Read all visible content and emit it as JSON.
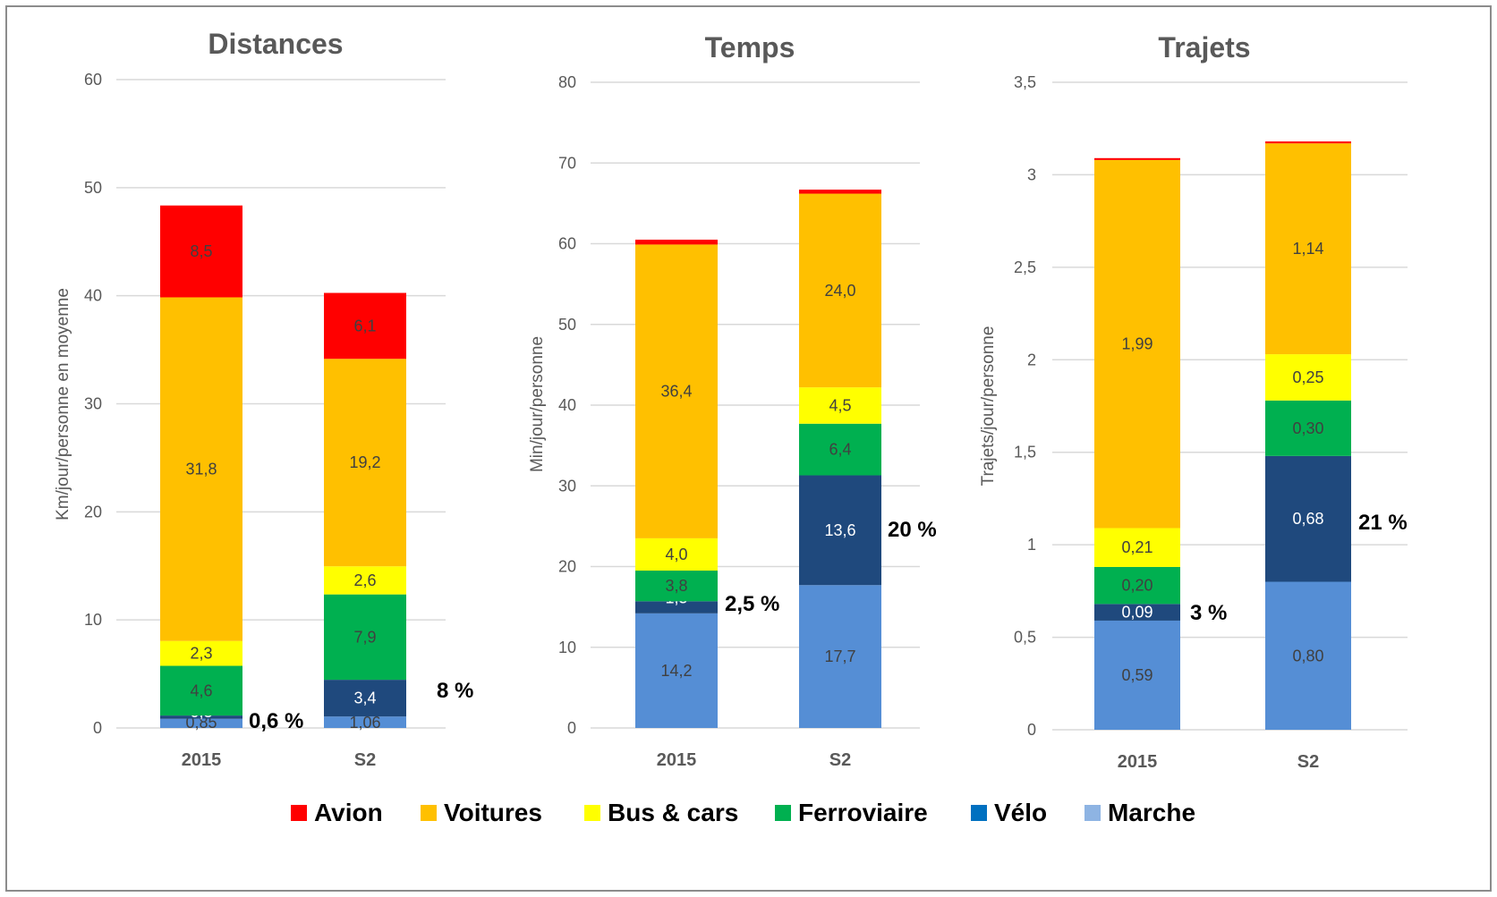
{
  "legend": [
    {
      "name": "Avion",
      "color": "#ff0000"
    },
    {
      "name": "Voitures",
      "color": "#ffc000"
    },
    {
      "name": "Bus & cars",
      "color": "#ffff00"
    },
    {
      "name": "Ferroviaire",
      "color": "#00b050"
    },
    {
      "name": "Vélo",
      "color": "#0070c0"
    },
    {
      "name": "Marche",
      "color": "#8eb4e3"
    }
  ],
  "chart_data": [
    {
      "type": "bar",
      "stacked": true,
      "title": "Distances",
      "ylabel": "Km/jour/personne en moyenne",
      "categories": [
        "2015",
        "S2"
      ],
      "ylim": [
        0,
        60
      ],
      "yticks": [
        "0",
        "10",
        "20",
        "30",
        "40",
        "50",
        "60"
      ],
      "ytick_values": [
        0,
        10,
        20,
        30,
        40,
        50,
        60
      ],
      "grid": true,
      "series": [
        {
          "name": "Marche",
          "color": "#558ed5",
          "values": [
            0.85,
            1.06
          ],
          "labels": [
            "0,85",
            "1,06"
          ],
          "label_color": "#404040"
        },
        {
          "name": "Vélo",
          "color": "#1f497d",
          "values": [
            0.3,
            3.4
          ],
          "labels": [
            "0,3",
            "3,4"
          ],
          "label_color": "#ffffff"
        },
        {
          "name": "Ferroviaire",
          "color": "#00b050",
          "values": [
            4.6,
            7.9
          ],
          "labels": [
            "4,6",
            "7,9"
          ],
          "label_color": "#404040"
        },
        {
          "name": "Bus & cars",
          "color": "#ffff00",
          "values": [
            2.3,
            2.6
          ],
          "labels": [
            "2,3",
            "2,6"
          ],
          "label_color": "#404040"
        },
        {
          "name": "Voitures",
          "color": "#ffc000",
          "values": [
            31.8,
            19.2
          ],
          "labels": [
            "31,8",
            "19,2"
          ],
          "label_color": "#404040"
        },
        {
          "name": "Avion",
          "color": "#ff0000",
          "values": [
            8.5,
            6.1
          ],
          "labels": [
            "8,5",
            "6,1"
          ],
          "label_color": "#404040"
        }
      ],
      "annotations": [
        "0,6 %",
        "8 %"
      ]
    },
    {
      "type": "bar",
      "stacked": true,
      "title": "Temps",
      "ylabel": "Min/jour/personne",
      "categories": [
        "2015",
        "S2"
      ],
      "ylim": [
        0,
        80
      ],
      "yticks": [
        "0",
        "10",
        "20",
        "30",
        "40",
        "50",
        "60",
        "70",
        "80"
      ],
      "ytick_values": [
        0,
        10,
        20,
        30,
        40,
        50,
        60,
        70,
        80
      ],
      "grid": true,
      "series": [
        {
          "name": "Marche",
          "color": "#558ed5",
          "values": [
            14.2,
            17.7
          ],
          "labels": [
            "14,2",
            "17,7"
          ],
          "label_color": "#404040"
        },
        {
          "name": "Vélo",
          "color": "#1f497d",
          "values": [
            1.5,
            13.6
          ],
          "labels": [
            "1,5",
            "13,6"
          ],
          "label_color": "#ffffff"
        },
        {
          "name": "Ferroviaire",
          "color": "#00b050",
          "values": [
            3.8,
            6.4
          ],
          "labels": [
            "3,8",
            "6,4"
          ],
          "label_color": "#404040"
        },
        {
          "name": "Bus & cars",
          "color": "#ffff00",
          "values": [
            4.0,
            4.5
          ],
          "labels": [
            "4,0",
            "4,5"
          ],
          "label_color": "#404040"
        },
        {
          "name": "Voitures",
          "color": "#ffc000",
          "values": [
            36.4,
            24.0
          ],
          "labels": [
            "36,4",
            "24,0"
          ],
          "label_color": "#404040"
        },
        {
          "name": "Avion",
          "color": "#ff0000",
          "values": [
            0.6,
            0.5
          ],
          "labels": [
            "",
            ""
          ],
          "label_color": "#404040"
        }
      ],
      "annotations": [
        "2,5 %",
        "20 %"
      ]
    },
    {
      "type": "bar",
      "stacked": true,
      "title": "Trajets",
      "ylabel": "Trajets/jour/personne",
      "categories": [
        "2015",
        "S2"
      ],
      "ylim": [
        0,
        3.5
      ],
      "yticks": [
        "0",
        "0,5",
        "1",
        "1,5",
        "2",
        "2,5",
        "3",
        "3,5"
      ],
      "ytick_values": [
        0,
        0.5,
        1,
        1.5,
        2,
        2.5,
        3,
        3.5
      ],
      "grid": true,
      "series": [
        {
          "name": "Marche",
          "color": "#558ed5",
          "values": [
            0.59,
            0.8
          ],
          "labels": [
            "0,59",
            "0,80"
          ],
          "label_color": "#404040"
        },
        {
          "name": "Vélo",
          "color": "#1f497d",
          "values": [
            0.09,
            0.68
          ],
          "labels": [
            "0,09",
            "0,68"
          ],
          "label_color": "#ffffff"
        },
        {
          "name": "Ferroviaire",
          "color": "#00b050",
          "values": [
            0.2,
            0.3
          ],
          "labels": [
            "0,20",
            "0,30"
          ],
          "label_color": "#404040"
        },
        {
          "name": "Bus & cars",
          "color": "#ffff00",
          "values": [
            0.21,
            0.25
          ],
          "labels": [
            "0,21",
            "0,25"
          ],
          "label_color": "#404040"
        },
        {
          "name": "Voitures",
          "color": "#ffc000",
          "values": [
            1.99,
            1.14
          ],
          "labels": [
            "1,99",
            "1,14"
          ],
          "label_color": "#404040"
        },
        {
          "name": "Avion",
          "color": "#ff0000",
          "values": [
            0.01,
            0.01
          ],
          "labels": [
            "",
            ""
          ],
          "label_color": "#404040"
        }
      ],
      "annotations": [
        "3 %",
        "21 %"
      ]
    }
  ]
}
